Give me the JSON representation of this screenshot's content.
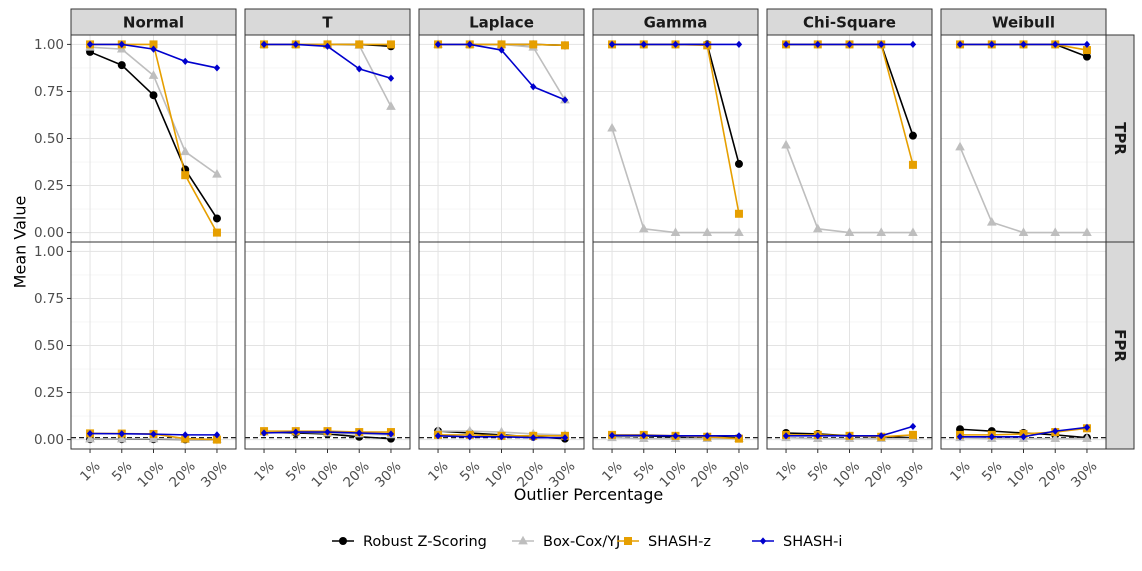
{
  "chart_data": {
    "type": "line",
    "facet_columns": [
      "Normal",
      "T",
      "Laplace",
      "Gamma",
      "Chi-Square",
      "Weibull"
    ],
    "facet_rows": [
      "TPR",
      "FPR"
    ],
    "categories": [
      "1%",
      "5%",
      "10%",
      "20%",
      "30%"
    ],
    "xlabel": "Outlier Percentage",
    "ylabel": "Mean Value",
    "ylim": [
      -0.05,
      1.05
    ],
    "yticks": [
      0.0,
      0.25,
      0.5,
      0.75,
      1.0
    ],
    "ytick_labels": [
      "0.00",
      "0.25",
      "0.50",
      "0.75",
      "1.00"
    ],
    "reference_line": {
      "row": "FPR",
      "y": 0.01,
      "style": "dashed"
    },
    "legend": {
      "position": "bottom"
    },
    "series": [
      {
        "name": "Robust Z-Scoring",
        "color": "#000000",
        "marker": "circle"
      },
      {
        "name": "Box-Cox/YJ",
        "color": "#bebebe",
        "marker": "triangle"
      },
      {
        "name": "SHASH-z",
        "color": "#e69f00",
        "marker": "square"
      },
      {
        "name": "SHASH-i",
        "color": "#0000cd",
        "marker": "diamond"
      }
    ],
    "panels": {
      "TPR": {
        "Normal": {
          "Robust Z-Scoring": [
            0.96,
            0.89,
            0.73,
            0.335,
            0.075
          ],
          "Box-Cox/YJ": [
            0.985,
            0.975,
            0.835,
            0.43,
            0.31
          ],
          "SHASH-z": [
            1.0,
            1.0,
            1.0,
            0.305,
            0.0
          ],
          "SHASH-i": [
            1.0,
            1.0,
            0.975,
            0.91,
            0.875
          ]
        },
        "T": {
          "Robust Z-Scoring": [
            1.0,
            1.0,
            1.0,
            1.0,
            0.99
          ],
          "Box-Cox/YJ": [
            1.0,
            1.0,
            1.0,
            0.995,
            0.67
          ],
          "SHASH-z": [
            1.0,
            1.0,
            1.0,
            1.0,
            1.0
          ],
          "SHASH-i": [
            1.0,
            1.0,
            0.99,
            0.87,
            0.82
          ]
        },
        "Laplace": {
          "Robust Z-Scoring": [
            1.0,
            1.0,
            1.0,
            1.0,
            0.995
          ],
          "Box-Cox/YJ": [
            1.0,
            1.0,
            1.0,
            0.985,
            0.705
          ],
          "SHASH-z": [
            1.0,
            1.0,
            1.0,
            1.0,
            0.995
          ],
          "SHASH-i": [
            1.0,
            1.0,
            0.97,
            0.775,
            0.705
          ]
        },
        "Gamma": {
          "Robust Z-Scoring": [
            1.0,
            1.0,
            1.0,
            1.0,
            0.365
          ],
          "Box-Cox/YJ": [
            0.555,
            0.02,
            0.0,
            0.0,
            0.0
          ],
          "SHASH-z": [
            1.0,
            1.0,
            1.0,
            0.995,
            0.1
          ],
          "SHASH-i": [
            1.0,
            1.0,
            1.0,
            1.0,
            1.0
          ]
        },
        "Chi-Square": {
          "Robust Z-Scoring": [
            1.0,
            1.0,
            1.0,
            1.0,
            0.515
          ],
          "Box-Cox/YJ": [
            0.465,
            0.02,
            0.0,
            0.0,
            0.0
          ],
          "SHASH-z": [
            1.0,
            1.0,
            1.0,
            1.0,
            0.36
          ],
          "SHASH-i": [
            1.0,
            1.0,
            1.0,
            1.0,
            1.0
          ]
        },
        "Weibull": {
          "Robust Z-Scoring": [
            1.0,
            1.0,
            1.0,
            1.0,
            0.935
          ],
          "Box-Cox/YJ": [
            0.455,
            0.055,
            0.0,
            0.0,
            0.0
          ],
          "SHASH-z": [
            1.0,
            1.0,
            1.0,
            1.0,
            0.97
          ],
          "SHASH-i": [
            1.0,
            1.0,
            1.0,
            1.0,
            1.0
          ]
        }
      },
      "FPR": {
        "Normal": {
          "Robust Z-Scoring": [
            0.002,
            0.002,
            0.002,
            0.001,
            0.0
          ],
          "Box-Cox/YJ": [
            0.003,
            0.003,
            0.004,
            0.002,
            0.001
          ],
          "SHASH-z": [
            0.033,
            0.032,
            0.03,
            0.005,
            0.0
          ],
          "SHASH-i": [
            0.032,
            0.031,
            0.029,
            0.025,
            0.025
          ]
        },
        "T": {
          "Robust Z-Scoring": [
            0.04,
            0.035,
            0.03,
            0.015,
            0.005
          ],
          "Box-Cox/YJ": [
            0.04,
            0.04,
            0.035,
            0.03,
            0.025
          ],
          "SHASH-z": [
            0.045,
            0.045,
            0.045,
            0.04,
            0.04
          ],
          "SHASH-i": [
            0.035,
            0.04,
            0.04,
            0.035,
            0.03
          ]
        },
        "Laplace": {
          "Robust Z-Scoring": [
            0.045,
            0.035,
            0.025,
            0.015,
            0.005
          ],
          "Box-Cox/YJ": [
            0.045,
            0.045,
            0.04,
            0.03,
            0.025
          ],
          "SHASH-z": [
            0.025,
            0.025,
            0.02,
            0.02,
            0.02
          ],
          "SHASH-i": [
            0.02,
            0.015,
            0.015,
            0.01,
            0.01
          ]
        },
        "Gamma": {
          "Robust Z-Scoring": [
            0.02,
            0.02,
            0.015,
            0.015,
            0.01
          ],
          "Box-Cox/YJ": [
            0.01,
            0.005,
            0.005,
            0.005,
            0.005
          ],
          "SHASH-z": [
            0.025,
            0.025,
            0.02,
            0.015,
            0.005
          ],
          "SHASH-i": [
            0.022,
            0.022,
            0.02,
            0.02,
            0.02
          ]
        },
        "Chi-Square": {
          "Robust Z-Scoring": [
            0.035,
            0.03,
            0.02,
            0.015,
            0.01
          ],
          "Box-Cox/YJ": [
            0.01,
            0.005,
            0.005,
            0.005,
            0.005
          ],
          "SHASH-z": [
            0.025,
            0.025,
            0.02,
            0.015,
            0.025
          ],
          "SHASH-i": [
            0.02,
            0.02,
            0.02,
            0.02,
            0.07
          ]
        },
        "Weibull": {
          "Robust Z-Scoring": [
            0.055,
            0.045,
            0.035,
            0.025,
            0.01
          ],
          "Box-Cox/YJ": [
            0.01,
            0.005,
            0.005,
            0.005,
            0.005
          ],
          "SHASH-z": [
            0.025,
            0.025,
            0.03,
            0.04,
            0.06
          ],
          "SHASH-i": [
            0.015,
            0.015,
            0.015,
            0.045,
            0.065
          ]
        }
      }
    }
  }
}
